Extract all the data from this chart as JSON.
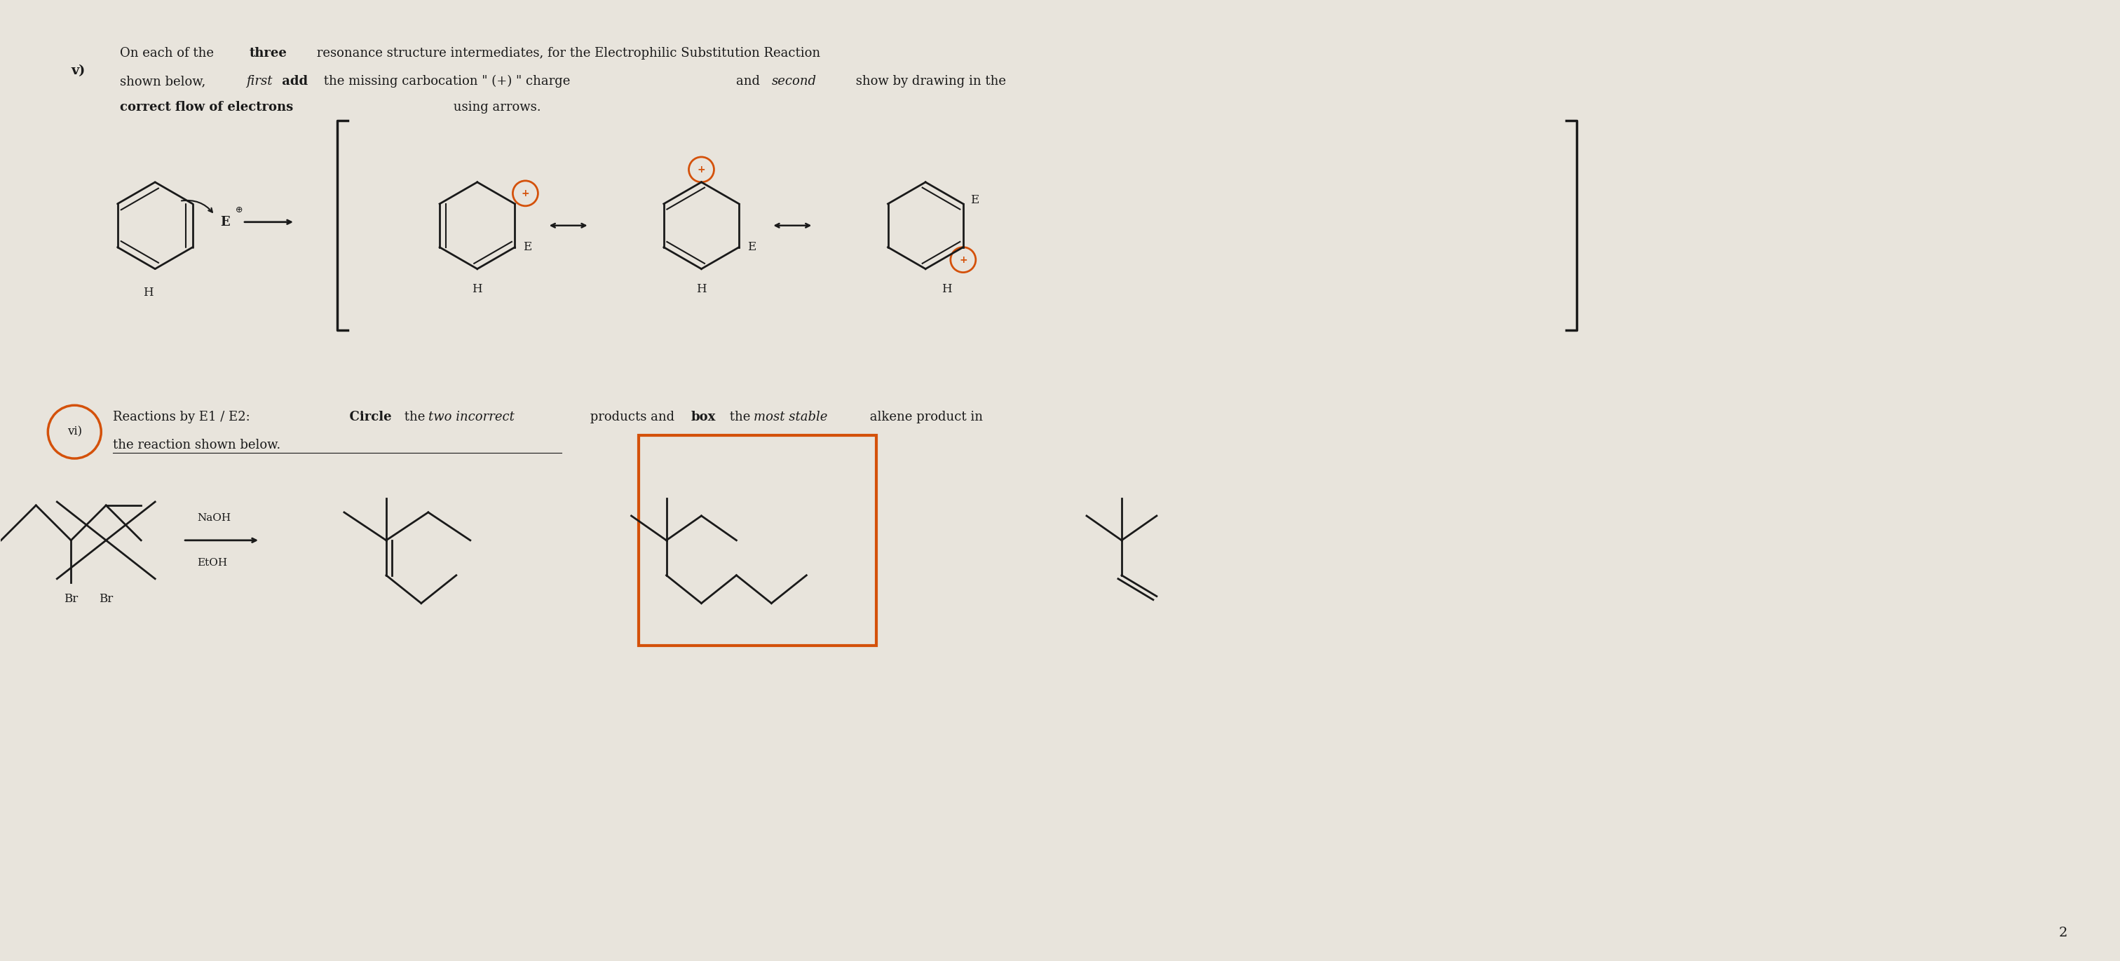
{
  "bg_color": "#e8e4dc",
  "text_color": "#1a1a1a",
  "title_v": "v)  On each of the three resonance structure intermediates, for the Electrophilic Substitution Reaction\n    shown below, first add the missing carbocation \" (+) \" charge and second show by drawing in the\n    correct flow of electrons using arrows.",
  "title_vi": "vi)  Reactions by E1 / E2:  Circle the two incorrect products and box the most stable alkene product in\n      the reaction shown below.",
  "orange_color": "#d4510a",
  "page_num": "2"
}
